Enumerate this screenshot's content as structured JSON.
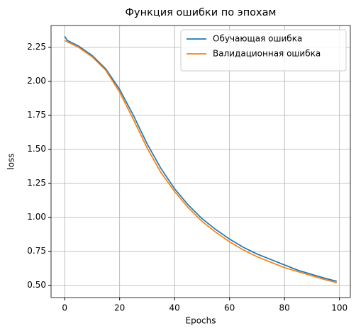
{
  "chart_data": {
    "type": "line",
    "title": "Функция ошибки по эпохам",
    "x_label": "Epochs",
    "y_label": "loss",
    "x": [
      0,
      1,
      5,
      10,
      15,
      20,
      25,
      30,
      35,
      40,
      45,
      50,
      55,
      60,
      65,
      70,
      75,
      80,
      85,
      90,
      95,
      99
    ],
    "series": [
      {
        "name": "Обучающая ошибка",
        "color": "#1f77b4",
        "values": [
          2.33,
          2.3,
          2.26,
          2.19,
          2.09,
          1.94,
          1.75,
          1.54,
          1.36,
          1.21,
          1.09,
          0.99,
          0.91,
          0.84,
          0.78,
          0.73,
          0.69,
          0.65,
          0.61,
          0.58,
          0.55,
          0.53
        ]
      },
      {
        "name": "Валидационная ошибка",
        "color": "#ff7f0e",
        "values": [
          2.3,
          2.29,
          2.25,
          2.18,
          2.08,
          1.92,
          1.72,
          1.51,
          1.33,
          1.19,
          1.07,
          0.97,
          0.89,
          0.82,
          0.76,
          0.71,
          0.67,
          0.63,
          0.6,
          0.57,
          0.54,
          0.52
        ]
      }
    ],
    "xlim": [
      -4.95,
      103.95
    ],
    "ylim": [
      0.41,
      2.41
    ],
    "xticks": [
      0,
      20,
      40,
      60,
      80,
      100
    ],
    "yticks": [
      {
        "value": 0.5,
        "label": "0.50"
      },
      {
        "value": 0.75,
        "label": "0.75"
      },
      {
        "value": 1.0,
        "label": "1.00"
      },
      {
        "value": 1.25,
        "label": "1.25"
      },
      {
        "value": 1.5,
        "label": "1.50"
      },
      {
        "value": 1.75,
        "label": "1.75"
      },
      {
        "value": 2.0,
        "label": "2.00"
      },
      {
        "value": 2.25,
        "label": "2.25"
      }
    ],
    "grid": true,
    "legend": "upper-right"
  }
}
